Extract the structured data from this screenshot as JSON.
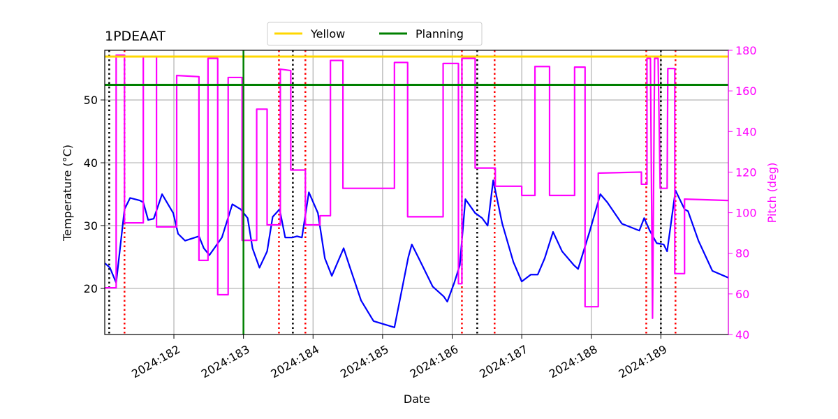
{
  "chart_data": {
    "type": "line",
    "title": "1PDEAAT",
    "xlabel": "Date",
    "ylabel": "Temperature (°C)",
    "y2label": "Pitch (deg)",
    "xlim": [
      181.006,
      189.97
    ],
    "xticks": [
      {
        "value": 182,
        "label": "2024:182"
      },
      {
        "value": 183,
        "label": "2024:183"
      },
      {
        "value": 184,
        "label": "2024:184"
      },
      {
        "value": 185,
        "label": "2024:185"
      },
      {
        "value": 186,
        "label": "2024:186"
      },
      {
        "value": 187,
        "label": "2024:187"
      },
      {
        "value": 188,
        "label": "2024:188"
      },
      {
        "value": 189,
        "label": "2024:189"
      }
    ],
    "ylim": [
      12.67,
      57.9
    ],
    "yticks": [
      20,
      30,
      40,
      50
    ],
    "y2lim": [
      40,
      180
    ],
    "y2ticks": [
      40,
      60,
      80,
      100,
      120,
      140,
      160,
      180
    ],
    "y2color": "#ff00ff",
    "grid": true,
    "legend": "upper center",
    "series": [
      {
        "name": "Temperature",
        "color": "#0000ff",
        "x": [
          181.01,
          181.08,
          181.17,
          181.29,
          181.37,
          181.51,
          181.56,
          181.63,
          181.71,
          181.83,
          181.99,
          182.06,
          182.16,
          182.36,
          182.43,
          182.51,
          182.69,
          182.84,
          182.96,
          183.06,
          183.13,
          183.23,
          183.34,
          183.42,
          183.52,
          183.6,
          183.7,
          183.77,
          183.84,
          183.94,
          184.07,
          184.17,
          184.27,
          184.44,
          184.52,
          184.69,
          184.87,
          185.17,
          185.37,
          185.42,
          185.52,
          185.72,
          185.88,
          185.93,
          186.03,
          186.11,
          186.19,
          186.33,
          186.43,
          186.51,
          186.59,
          186.72,
          186.88,
          187.0,
          187.13,
          187.23,
          187.33,
          187.45,
          187.58,
          187.75,
          187.81,
          187.98,
          188.13,
          188.23,
          188.44,
          188.69,
          188.76,
          188.84,
          188.94,
          189.04,
          189.09,
          189.21,
          189.34,
          189.39,
          189.54,
          189.74,
          189.97
        ],
        "values": [
          24.0,
          23.3,
          20.9,
          32.6,
          34.4,
          34.0,
          33.7,
          30.9,
          31.1,
          35.0,
          32.0,
          28.7,
          27.6,
          28.3,
          26.4,
          25.3,
          28.1,
          33.4,
          32.6,
          31.2,
          26.4,
          23.3,
          25.9,
          31.4,
          32.6,
          28.1,
          28.1,
          28.3,
          28.1,
          35.3,
          32.0,
          24.8,
          22.0,
          26.4,
          23.7,
          18.1,
          14.8,
          13.8,
          25.0,
          27.0,
          24.8,
          20.3,
          18.7,
          17.9,
          20.9,
          23.7,
          34.2,
          32.0,
          31.2,
          30.0,
          37.2,
          30.3,
          24.2,
          21.1,
          22.2,
          22.2,
          24.8,
          29.0,
          25.9,
          23.7,
          23.1,
          29.2,
          35.0,
          33.7,
          30.3,
          29.2,
          31.2,
          29.2,
          27.2,
          27.0,
          25.9,
          35.6,
          32.6,
          32.3,
          27.6,
          22.8,
          21.7
        ]
      },
      {
        "name": "Pitch",
        "color": "#ff00ff",
        "axis": "y2",
        "x": [
          181.01,
          181.17,
          181.17,
          181.29,
          181.29,
          181.56,
          181.56,
          181.75,
          181.75,
          182.04,
          182.04,
          182.36,
          182.36,
          182.49,
          182.49,
          182.63,
          182.63,
          182.78,
          182.78,
          182.98,
          182.98,
          183.19,
          183.19,
          183.34,
          183.34,
          183.53,
          183.53,
          183.68,
          183.68,
          183.89,
          183.89,
          184.1,
          184.1,
          184.25,
          184.25,
          184.43,
          184.43,
          185.17,
          185.17,
          185.36,
          185.36,
          185.87,
          185.87,
          186.09,
          186.09,
          186.14,
          186.14,
          186.33,
          186.33,
          186.62,
          186.62,
          187.0,
          187.0,
          187.19,
          187.19,
          187.4,
          187.4,
          187.76,
          187.76,
          187.91,
          187.91,
          188.1,
          188.1,
          188.72,
          188.72,
          188.8,
          188.8,
          188.85,
          188.88,
          188.91,
          188.96,
          188.99,
          189.09,
          189.1,
          189.2,
          189.2,
          189.34,
          189.34,
          189.97
        ],
        "values": [
          63,
          63,
          177.6,
          177.6,
          95,
          95,
          177,
          177,
          93,
          93,
          167.6,
          167,
          76.5,
          76.5,
          176,
          176,
          59.6,
          59.6,
          166.6,
          166.6,
          86.4,
          86.4,
          151,
          151,
          94,
          94,
          170.7,
          170,
          121,
          121,
          94,
          94,
          98.5,
          98.5,
          175,
          175,
          112,
          112,
          174,
          174,
          98,
          98,
          173.5,
          173.5,
          65,
          65,
          176,
          176,
          122,
          122,
          113,
          113,
          108.5,
          108.5,
          172,
          172,
          108.5,
          108.5,
          171.7,
          171.7,
          53.7,
          53.7,
          119.5,
          120,
          114,
          114,
          176,
          176,
          48,
          176,
          176,
          112,
          112,
          171,
          171,
          70,
          70,
          106.7,
          106
        ]
      }
    ],
    "limits": [
      {
        "name": "Yellow",
        "color": "#ffd700",
        "y": 56.9
      },
      {
        "name": "Planning",
        "color": "#008000",
        "y": 52.4,
        "x": 183.0
      }
    ],
    "vlines": [
      {
        "color": "#000000",
        "style": "dotted",
        "x": [
          181.07,
          183.71,
          186.36,
          189.0
        ]
      },
      {
        "color": "#ff0000",
        "style": "dotted",
        "x": [
          181.29,
          183.51,
          183.89,
          186.14,
          186.61,
          188.79,
          189.21
        ]
      }
    ]
  }
}
